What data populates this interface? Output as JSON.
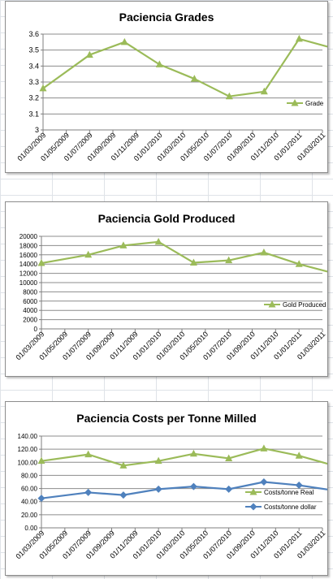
{
  "chart_data": [
    {
      "type": "line",
      "title": "Paciencia Grades",
      "x_tick_labels": [
        "01/03/2009",
        "01/05/2009",
        "01/07/2009",
        "01/09/2009",
        "01/11/2009",
        "01/01/2010",
        "01/03/2010",
        "01/05/2010",
        "01/07/2010",
        "01/09/2010",
        "01/11/2010",
        "01/01/2011",
        "01/03/2011"
      ],
      "ylim": [
        3,
        3.6
      ],
      "y_ticks": [
        "3",
        "3.1",
        "3.2",
        "3.3",
        "3.4",
        "3.5",
        "3.6"
      ],
      "series": [
        {
          "name": "Grade",
          "color": "#9bbb59",
          "marker": "triangle",
          "x": [
            "01/03/2009",
            "01/07/2009",
            "01/10/2009",
            "01/01/2010",
            "01/04/2010",
            "01/07/2010",
            "01/10/2010",
            "01/01/2011",
            "01/04/2011"
          ],
          "values": [
            3.26,
            3.47,
            3.55,
            3.41,
            3.32,
            3.21,
            3.24,
            3.57,
            3.51
          ]
        }
      ],
      "legend_position": "right",
      "grid": "horizontal"
    },
    {
      "type": "line",
      "title": "Paciencia  Gold Produced",
      "x_tick_labels": [
        "01/03/2009",
        "01/05/2009",
        "01/07/2009",
        "01/09/2009",
        "01/11/2009",
        "01/01/2010",
        "01/03/2010",
        "01/05/2010",
        "01/07/2010",
        "01/09/2010",
        "01/11/2010",
        "01/01/2011",
        "01/03/2011"
      ],
      "ylim": [
        0,
        20000
      ],
      "y_ticks": [
        "0",
        "2000",
        "4000",
        "6000",
        "8000",
        "10000",
        "12000",
        "14000",
        "16000",
        "18000",
        "20000"
      ],
      "series": [
        {
          "name": "Gold Produced",
          "color": "#9bbb59",
          "marker": "triangle",
          "x": [
            "01/03/2009",
            "01/07/2009",
            "01/10/2009",
            "01/01/2010",
            "01/04/2010",
            "01/07/2010",
            "01/10/2010",
            "01/01/2011",
            "01/04/2011"
          ],
          "values": [
            14200,
            16000,
            18000,
            18800,
            14300,
            14800,
            16500,
            14000,
            12000
          ]
        }
      ],
      "legend_position": "right",
      "grid": "horizontal"
    },
    {
      "type": "line",
      "title": "Paciencia  Costs per Tonne Milled",
      "x_tick_labels": [
        "01/03/2009",
        "01/05/2009",
        "01/07/2009",
        "01/09/2009",
        "01/11/2009",
        "01/01/2010",
        "01/03/2010",
        "01/05/2010",
        "01/07/2010",
        "01/09/2010",
        "01/11/2010",
        "01/01/2011",
        "01/03/2011"
      ],
      "ylim": [
        0,
        140
      ],
      "y_ticks": [
        "0.00",
        "20.00",
        "40.00",
        "60.00",
        "80.00",
        "100.00",
        "120.00",
        "140.00"
      ],
      "series": [
        {
          "name": "Costs/tonne Real",
          "color": "#9bbb59",
          "marker": "triangle",
          "x": [
            "01/03/2009",
            "01/07/2009",
            "01/10/2009",
            "01/01/2010",
            "01/04/2010",
            "01/07/2010",
            "01/10/2010",
            "01/01/2011",
            "01/04/2011"
          ],
          "values": [
            102,
            112,
            95,
            102,
            113,
            106,
            121,
            110,
            95
          ]
        },
        {
          "name": "Costs/tonne dollar",
          "color": "#4f81bd",
          "marker": "diamond",
          "x": [
            "01/03/2009",
            "01/07/2009",
            "01/10/2009",
            "01/01/2010",
            "01/04/2010",
            "01/07/2010",
            "01/10/2010",
            "01/01/2011",
            "01/04/2011"
          ],
          "values": [
            45,
            54,
            50,
            59,
            63,
            59,
            70,
            65,
            57
          ]
        }
      ],
      "legend_position": "right",
      "grid": "horizontal"
    }
  ]
}
